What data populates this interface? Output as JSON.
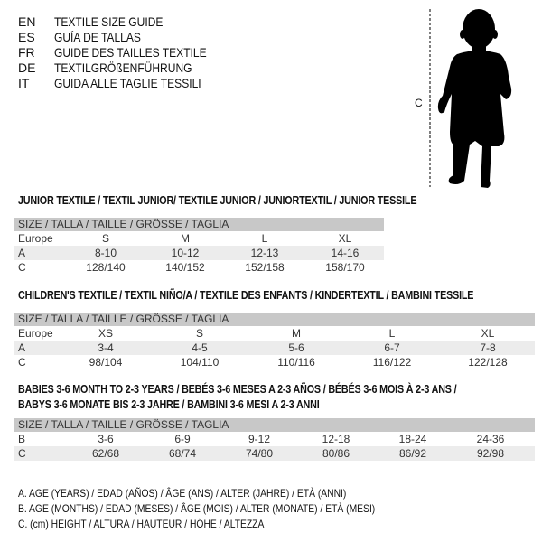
{
  "languages": [
    {
      "code": "EN",
      "title": "TEXTILE SIZE GUIDE"
    },
    {
      "code": "ES",
      "title": "GUÍA DE TALLAS"
    },
    {
      "code": "FR",
      "title": "GUIDE DES TAILLES TEXTILE"
    },
    {
      "code": "DE",
      "title": "TEXTILGRÖßENFÜHRUNG"
    },
    {
      "code": "IT",
      "title": "GUIDA ALLE TAGLIE TESSILI"
    }
  ],
  "figure": {
    "height_label": "C",
    "icon": "baby-silhouette"
  },
  "sections": [
    {
      "title": "JUNIOR TEXTILE / TEXTIL JUNIOR/ TEXTILE JUNIOR / JUNIORTEXTIL / JUNIOR TESSILE",
      "header": "SIZE / TALLA / TAILLE / GRÖSSE / TAGLIA",
      "rows": [
        {
          "label": "Europe",
          "values": [
            "S",
            "M",
            "L",
            "XL"
          ]
        },
        {
          "label": "A",
          "values": [
            "8-10",
            "10-12",
            "12-13",
            "14-16"
          ]
        },
        {
          "label": "C",
          "values": [
            "128/140",
            "140/152",
            "152/158",
            "158/170"
          ]
        }
      ]
    },
    {
      "title": "CHILDREN'S TEXTILE / TEXTIL NIÑO/A / TEXTILE DES ENFANTS / KINDERTEXTIL / BAMBINI TESSILE",
      "header": "SIZE / TALLA / TAILLE / GRÖSSE / TAGLIA",
      "rows": [
        {
          "label": "Europe",
          "values": [
            "XS",
            "S",
            "M",
            "L",
            "XL"
          ]
        },
        {
          "label": "A",
          "values": [
            "3-4",
            "4-5",
            "5-6",
            "6-7",
            "7-8"
          ]
        },
        {
          "label": "C",
          "values": [
            "98/104",
            "104/110",
            "110/116",
            "116/122",
            "122/128"
          ]
        }
      ]
    },
    {
      "title": "BABIES 3-6 MONTH TO 2-3 YEARS / BEBÉS 3-6 MESES A 2-3 AÑOS / BÉBÉS 3-6 MOIS À 2-3 ANS /",
      "title2": "BABYS 3-6 MONATE BIS 2-3 JAHRE / BAMBINI 3-6 MESI A 2-3 ANNI",
      "header": "SIZE / TALLA / TAILLE / GRÖSSE / TAGLIA",
      "rows": [
        {
          "label": "B",
          "values": [
            "3-6",
            "6-9",
            "9-12",
            "12-18",
            "18-24",
            "24-36"
          ]
        },
        {
          "label": "C",
          "values": [
            "62/68",
            "68/74",
            "74/80",
            "80/86",
            "86/92",
            "92/98"
          ]
        }
      ]
    }
  ],
  "legend": [
    "A. AGE (YEARS) / EDAD (AÑOS) / ÂGE (ANS) / ALTER (JAHRE) / ETÀ (ANNI)",
    "B. AGE (MONTHS) / EDAD (MESES) / ÂGE (MOIS) / ALTER (MONATE) / ETÀ (MESI)",
    "C. (cm) HEIGHT / ALTURA / HAUTEUR / HÖHE / ALTEZZA"
  ]
}
